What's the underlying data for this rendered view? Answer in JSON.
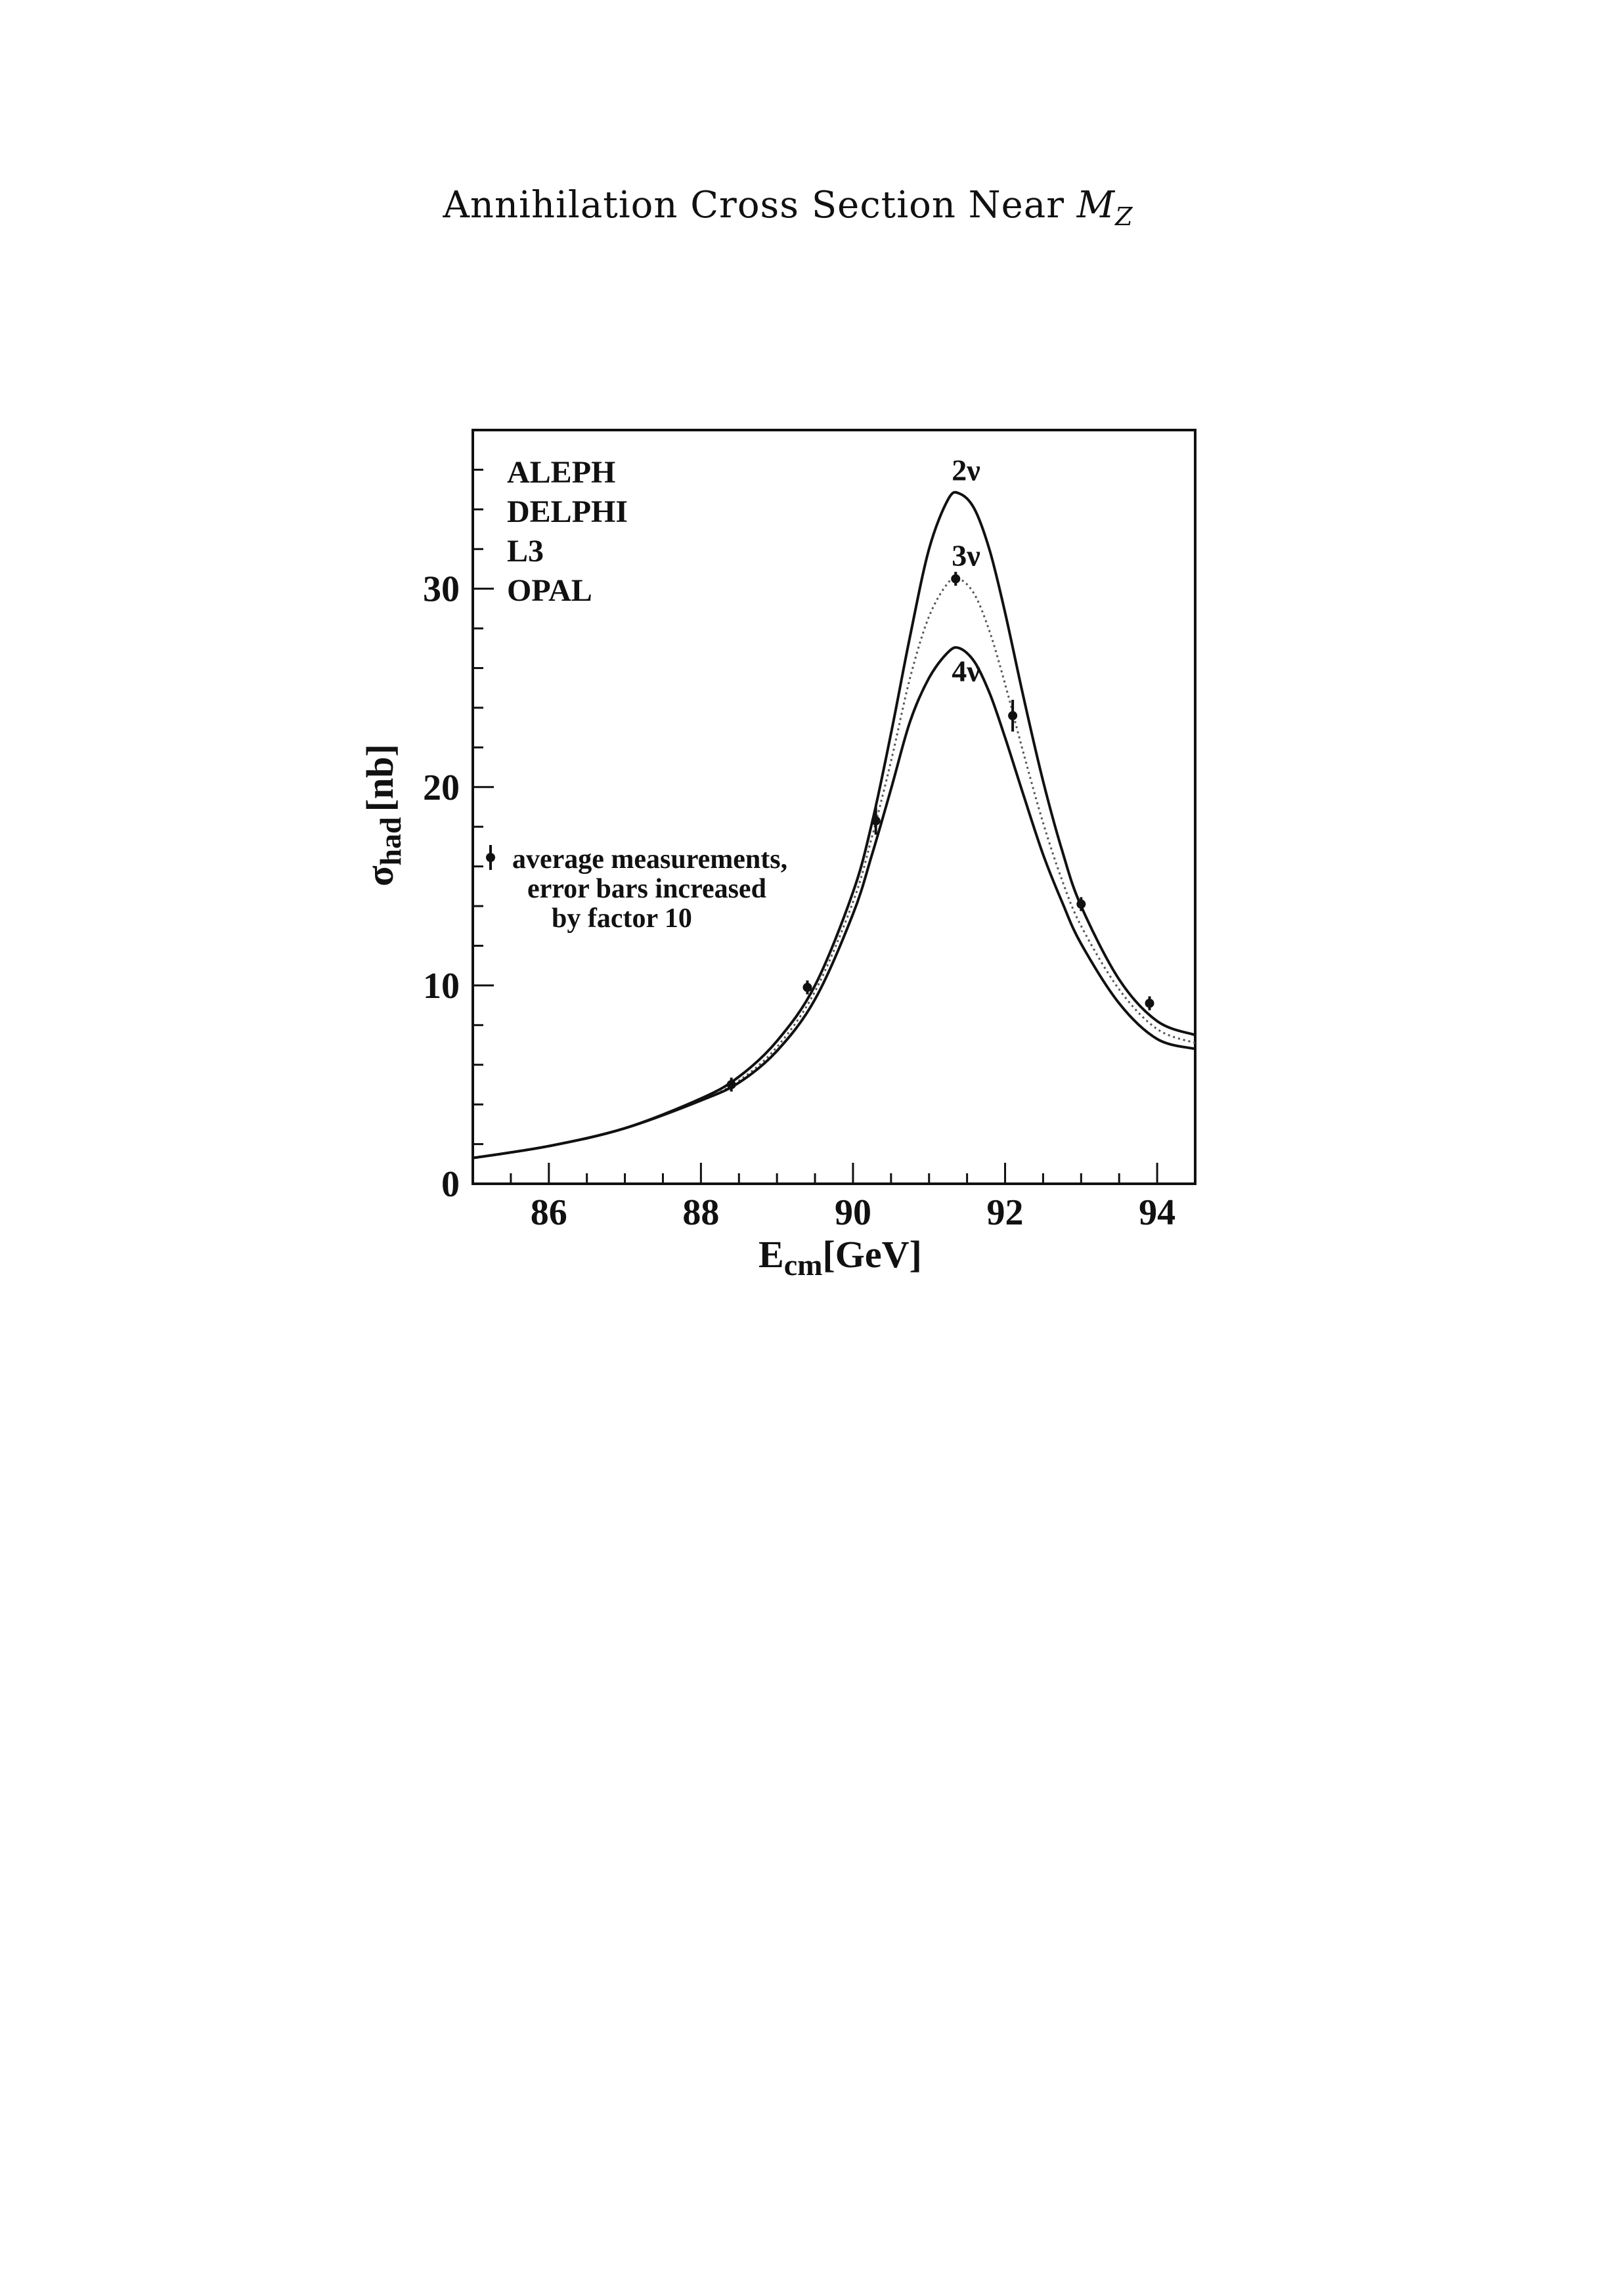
{
  "page": {
    "title_prefix": "Annihilation Cross Section Near ",
    "title_symbol": "M",
    "title_subscript": "Z"
  },
  "chart_data": {
    "type": "line",
    "title": "",
    "xlabel": "E",
    "xlabel_sub": "cm",
    "xlabel_unit": "[GeV]",
    "ylabel": "σ",
    "ylabel_sub": "had",
    "ylabel_unit": "[nb]",
    "xlim": [
      85.0,
      94.5
    ],
    "ylim": [
      0,
      38
    ],
    "x_ticks": [
      86,
      88,
      90,
      92,
      94
    ],
    "x_tick_labels": [
      "86",
      "88",
      "90",
      "92",
      "94"
    ],
    "y_ticks": [
      0,
      10,
      20,
      30
    ],
    "y_tick_labels": [
      "0",
      "10",
      "20",
      "30"
    ],
    "grid": false,
    "experiments": [
      "ALEPH",
      "DELPHI",
      "L3",
      "OPAL"
    ],
    "annotation": [
      "average measurements,",
      "error bars increased",
      "by factor 10"
    ],
    "series": [
      {
        "name": "2ν",
        "x": [
          85.0,
          86.0,
          87.0,
          88.0,
          88.5,
          89.0,
          89.5,
          90.0,
          90.25,
          90.5,
          90.75,
          91.0,
          91.25,
          91.4,
          91.6,
          91.8,
          92.0,
          92.25,
          92.5,
          92.75,
          93.0,
          93.5,
          94.0,
          94.5
        ],
        "values": [
          1.3,
          1.9,
          2.8,
          4.3,
          5.4,
          7.2,
          10.0,
          14.7,
          18.2,
          22.7,
          27.6,
          32.0,
          34.5,
          34.8,
          34.0,
          31.9,
          28.8,
          24.4,
          20.3,
          16.8,
          14.0,
          10.3,
          8.2,
          7.5
        ],
        "style": "solid"
      },
      {
        "name": "3ν",
        "x": [
          85.0,
          86.0,
          87.0,
          88.0,
          88.5,
          89.0,
          89.5,
          90.0,
          90.25,
          90.5,
          90.75,
          91.0,
          91.25,
          91.4,
          91.6,
          91.8,
          92.0,
          92.25,
          92.5,
          92.75,
          93.0,
          93.5,
          94.0,
          94.5
        ],
        "values": [
          1.3,
          1.9,
          2.8,
          4.2,
          5.2,
          6.9,
          9.7,
          14.2,
          17.5,
          21.3,
          25.5,
          28.6,
          30.3,
          30.5,
          29.7,
          27.8,
          25.2,
          21.6,
          18.2,
          15.3,
          13.0,
          9.8,
          7.8,
          7.1
        ],
        "style": "dotted"
      },
      {
        "name": "4ν",
        "x": [
          85.0,
          86.0,
          87.0,
          88.0,
          88.5,
          89.0,
          89.5,
          90.0,
          90.25,
          90.5,
          90.75,
          91.0,
          91.25,
          91.4,
          91.6,
          91.8,
          92.0,
          92.25,
          92.5,
          92.75,
          93.0,
          93.5,
          94.0,
          94.5
        ],
        "values": [
          1.3,
          1.9,
          2.8,
          4.2,
          5.1,
          6.7,
          9.3,
          13.6,
          16.6,
          19.9,
          23.3,
          25.5,
          26.8,
          27.0,
          26.3,
          24.7,
          22.5,
          19.5,
          16.6,
          14.2,
          12.1,
          9.1,
          7.3,
          6.8
        ],
        "style": "solid"
      }
    ],
    "measurements": {
      "name": "average measurements",
      "x": [
        88.4,
        89.4,
        90.3,
        91.35,
        92.1,
        93.0,
        93.9
      ],
      "y": [
        5.0,
        9.9,
        18.3,
        30.5,
        23.6,
        14.1,
        9.1
      ],
      "err": [
        0.3,
        0.3,
        0.7,
        0.2,
        0.8,
        0.2,
        0.3
      ]
    }
  }
}
